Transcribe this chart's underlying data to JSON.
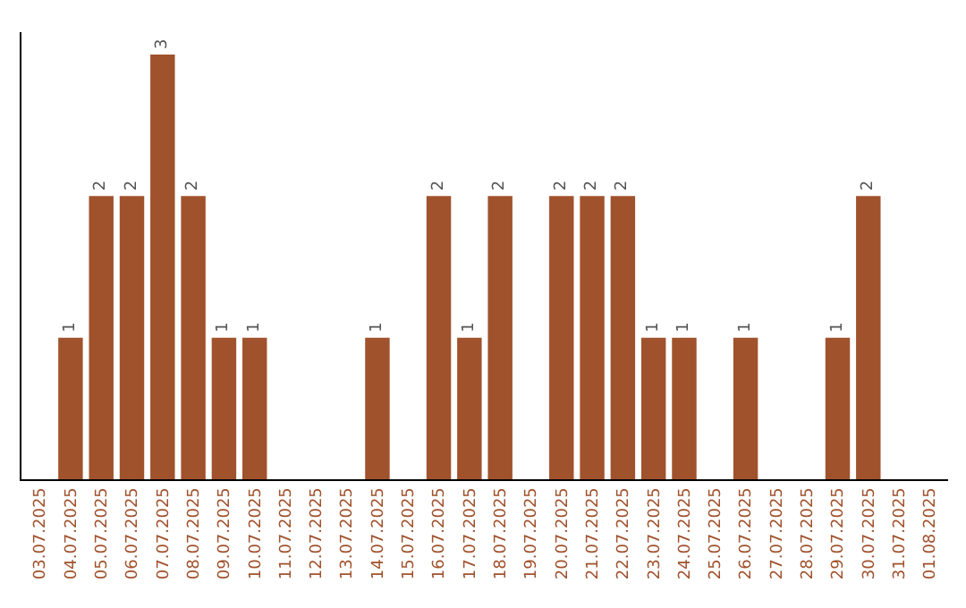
{
  "chart_data": {
    "type": "bar",
    "categories": [
      "03.07.2025",
      "04.07.2025",
      "05.07.2025",
      "06.07.2025",
      "07.07.2025",
      "08.07.2025",
      "09.07.2025",
      "10.07.2025",
      "11.07.2025",
      "12.07.2025",
      "13.07.2025",
      "14.07.2025",
      "15.07.2025",
      "16.07.2025",
      "17.07.2025",
      "18.07.2025",
      "19.07.2025",
      "20.07.2025",
      "21.07.2025",
      "22.07.2025",
      "23.07.2025",
      "24.07.2025",
      "25.07.2025",
      "26.07.2025",
      "27.07.2025",
      "28.07.2025",
      "29.07.2025",
      "30.07.2025",
      "31.07.2025",
      "01.08.2025"
    ],
    "values": [
      0,
      1,
      2,
      2,
      3,
      2,
      1,
      1,
      0,
      0,
      0,
      1,
      0,
      2,
      1,
      2,
      0,
      2,
      2,
      2,
      1,
      1,
      0,
      1,
      0,
      0,
      1,
      2,
      0,
      0
    ],
    "value_labels": [
      null,
      "1",
      "2",
      "2",
      "3",
      "2",
      "1",
      "1",
      null,
      null,
      null,
      "1",
      null,
      "2",
      "1",
      "2",
      null,
      "2",
      "2",
      "2",
      "1",
      "1",
      null,
      "1",
      null,
      null,
      "1",
      "2",
      null,
      null
    ],
    "color": "#a0522d"
  }
}
